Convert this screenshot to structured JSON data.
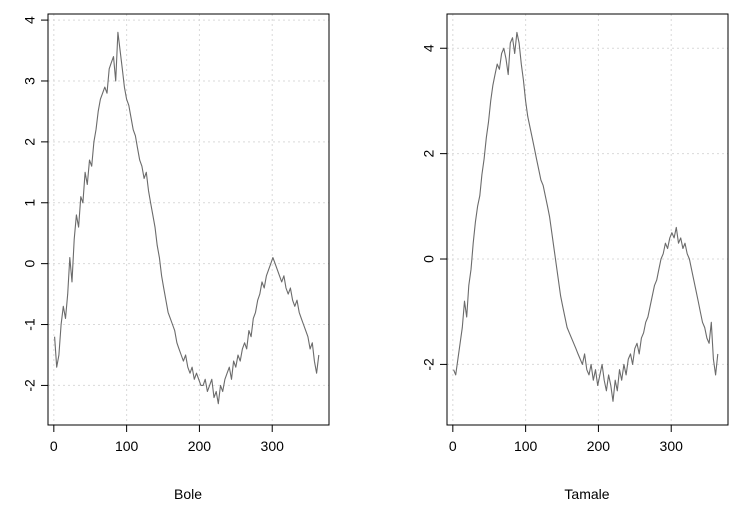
{
  "chart_data": [
    {
      "type": "line",
      "title": "",
      "xlabel": "Bole",
      "ylabel": "",
      "xlim": [
        -8,
        378
      ],
      "ylim": [
        -2.65,
        4.1
      ],
      "xticks": [
        0,
        100,
        200,
        300
      ],
      "yticks": [
        -2,
        -1,
        0,
        1,
        2,
        3,
        4
      ],
      "grid": true,
      "line_color": "#6b6b6b",
      "series": [
        {
          "values_description": "",
          "x": [
            1,
            4,
            7,
            10,
            13,
            16,
            19,
            22,
            25,
            28,
            31,
            34,
            37,
            40,
            43,
            46,
            49,
            52,
            55,
            58,
            61,
            64,
            67,
            70,
            73,
            76,
            79,
            82,
            85,
            88,
            91,
            94,
            97,
            100,
            103,
            106,
            109,
            112,
            115,
            118,
            121,
            124,
            127,
            130,
            133,
            136,
            139,
            142,
            145,
            148,
            151,
            154,
            157,
            160,
            163,
            166,
            169,
            172,
            175,
            178,
            181,
            184,
            187,
            190,
            193,
            196,
            199,
            202,
            205,
            208,
            211,
            214,
            217,
            220,
            223,
            226,
            229,
            232,
            235,
            238,
            241,
            244,
            247,
            250,
            253,
            256,
            259,
            262,
            265,
            268,
            271,
            274,
            277,
            280,
            283,
            286,
            289,
            292,
            295,
            298,
            301,
            304,
            307,
            310,
            313,
            316,
            319,
            322,
            325,
            328,
            331,
            334,
            337,
            340,
            343,
            346,
            349,
            352,
            355,
            358,
            361,
            364
          ],
          "y": [
            -1.2,
            -1.7,
            -1.5,
            -1.0,
            -0.7,
            -0.9,
            -0.5,
            0.1,
            -0.3,
            0.4,
            0.8,
            0.6,
            1.1,
            1.0,
            1.5,
            1.3,
            1.7,
            1.6,
            2.0,
            2.2,
            2.5,
            2.7,
            2.8,
            2.9,
            2.8,
            3.2,
            3.3,
            3.4,
            3.0,
            3.8,
            3.5,
            3.2,
            2.9,
            2.7,
            2.6,
            2.4,
            2.2,
            2.1,
            1.9,
            1.7,
            1.6,
            1.4,
            1.5,
            1.2,
            1.0,
            0.8,
            0.6,
            0.3,
            0.1,
            -0.2,
            -0.4,
            -0.6,
            -0.8,
            -0.9,
            -1.0,
            -1.1,
            -1.3,
            -1.4,
            -1.5,
            -1.6,
            -1.5,
            -1.7,
            -1.8,
            -1.7,
            -1.9,
            -1.8,
            -1.9,
            -2.0,
            -2.0,
            -1.9,
            -2.1,
            -2.0,
            -1.9,
            -2.2,
            -2.1,
            -2.3,
            -2.0,
            -2.1,
            -1.9,
            -1.8,
            -1.7,
            -1.9,
            -1.6,
            -1.7,
            -1.5,
            -1.6,
            -1.4,
            -1.3,
            -1.4,
            -1.1,
            -1.2,
            -0.9,
            -0.8,
            -0.6,
            -0.5,
            -0.3,
            -0.4,
            -0.2,
            -0.1,
            0.0,
            0.1,
            0.0,
            -0.1,
            -0.2,
            -0.3,
            -0.2,
            -0.4,
            -0.5,
            -0.4,
            -0.6,
            -0.7,
            -0.6,
            -0.8,
            -0.9,
            -1.0,
            -1.1,
            -1.2,
            -1.4,
            -1.3,
            -1.6,
            -1.8,
            -1.5
          ]
        }
      ]
    },
    {
      "type": "line",
      "title": "",
      "xlabel": "Tamale",
      "ylabel": "",
      "xlim": [
        -8,
        378
      ],
      "ylim": [
        -3.15,
        4.65
      ],
      "xticks": [
        0,
        100,
        200,
        300
      ],
      "yticks": [
        -2,
        0,
        2,
        4
      ],
      "grid": true,
      "line_color": "#6b6b6b",
      "series": [
        {
          "values_description": "",
          "x": [
            1,
            4,
            7,
            10,
            13,
            16,
            19,
            22,
            25,
            28,
            31,
            34,
            37,
            40,
            43,
            46,
            49,
            52,
            55,
            58,
            61,
            64,
            67,
            70,
            73,
            76,
            79,
            82,
            85,
            88,
            91,
            94,
            97,
            100,
            103,
            106,
            109,
            112,
            115,
            118,
            121,
            124,
            127,
            130,
            133,
            136,
            139,
            142,
            145,
            148,
            151,
            154,
            157,
            160,
            163,
            166,
            169,
            172,
            175,
            178,
            181,
            184,
            187,
            190,
            193,
            196,
            199,
            202,
            205,
            208,
            211,
            214,
            217,
            220,
            223,
            226,
            229,
            232,
            235,
            238,
            241,
            244,
            247,
            250,
            253,
            256,
            259,
            262,
            265,
            268,
            271,
            274,
            277,
            280,
            283,
            286,
            289,
            292,
            295,
            298,
            301,
            304,
            307,
            310,
            313,
            316,
            319,
            322,
            325,
            328,
            331,
            334,
            337,
            340,
            343,
            346,
            349,
            352,
            355,
            358,
            361,
            364
          ],
          "y": [
            -2.1,
            -2.2,
            -1.9,
            -1.6,
            -1.3,
            -0.8,
            -1.1,
            -0.5,
            -0.2,
            0.3,
            0.7,
            1.0,
            1.2,
            1.6,
            1.9,
            2.3,
            2.6,
            3.0,
            3.3,
            3.5,
            3.7,
            3.6,
            3.9,
            4.0,
            3.8,
            3.5,
            4.1,
            4.2,
            3.9,
            4.3,
            4.1,
            3.7,
            3.4,
            3.0,
            2.7,
            2.5,
            2.3,
            2.1,
            1.9,
            1.7,
            1.5,
            1.4,
            1.2,
            1.0,
            0.8,
            0.5,
            0.2,
            -0.1,
            -0.4,
            -0.7,
            -0.9,
            -1.1,
            -1.3,
            -1.4,
            -1.5,
            -1.6,
            -1.7,
            -1.8,
            -1.9,
            -2.0,
            -1.8,
            -2.1,
            -2.2,
            -2.0,
            -2.3,
            -2.1,
            -2.4,
            -2.2,
            -2.0,
            -2.3,
            -2.5,
            -2.2,
            -2.4,
            -2.7,
            -2.3,
            -2.5,
            -2.1,
            -2.3,
            -2.0,
            -2.2,
            -1.9,
            -1.8,
            -2.0,
            -1.7,
            -1.6,
            -1.8,
            -1.5,
            -1.4,
            -1.2,
            -1.1,
            -0.9,
            -0.7,
            -0.5,
            -0.4,
            -0.2,
            0.0,
            0.1,
            0.3,
            0.2,
            0.4,
            0.5,
            0.4,
            0.6,
            0.3,
            0.4,
            0.2,
            0.3,
            0.1,
            0.0,
            -0.2,
            -0.4,
            -0.6,
            -0.8,
            -1.0,
            -1.2,
            -1.3,
            -1.5,
            -1.6,
            -1.2,
            -1.9,
            -2.2,
            -1.8
          ]
        }
      ]
    }
  ]
}
